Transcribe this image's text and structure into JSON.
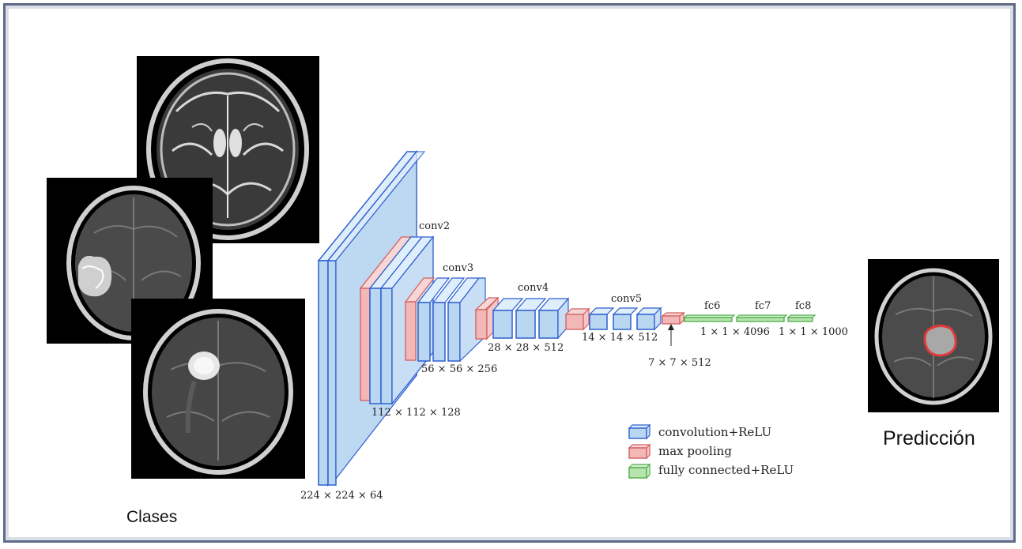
{
  "inputs": {
    "label": "Clases",
    "scans": [
      "mri-normal",
      "mri-tumor-left",
      "mri-tumor-top"
    ]
  },
  "output": {
    "label": "Predicción",
    "scan": "mri-segmented",
    "highlight_color": "#e23a3a"
  },
  "network": {
    "stage_labels": {
      "conv2": "conv2",
      "conv3": "conv3",
      "conv4": "conv4",
      "conv5": "conv5",
      "fc6": "fc6",
      "fc7": "fc7",
      "fc8": "fc8"
    },
    "dims": {
      "d1": "224 × 224 × 64",
      "d2": "112 × 112 × 128",
      "d3": "56 × 56 × 256",
      "d4": "28 × 28 × 512",
      "d5": "14 × 14 × 512",
      "d6": "7 × 7 × 512",
      "d7": "1 × 1 × 4096",
      "d8": "1 × 1 × 1000"
    },
    "legend": [
      {
        "key": "conv",
        "label": "convolution+ReLU",
        "color": "#b9d7f0",
        "edge": "#2f5fd0"
      },
      {
        "key": "pool",
        "label": "max pooling",
        "color": "#f2b7b7",
        "edge": "#d25f5f"
      },
      {
        "key": "fc",
        "label": "fully connected+ReLU",
        "color": "#b7e3ad",
        "edge": "#4fae4a"
      }
    ]
  }
}
